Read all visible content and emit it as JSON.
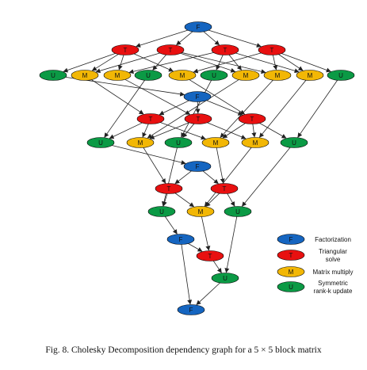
{
  "colors": {
    "F": "#1565c0",
    "T": "#e81010",
    "M": "#f2b705",
    "U": "#0b9a45",
    "edge": "#222222",
    "stroke": "#000000"
  },
  "nodes": [
    {
      "id": "F1",
      "type": "F",
      "label": "F"
    },
    {
      "id": "T12",
      "type": "T",
      "label": "T"
    },
    {
      "id": "T13",
      "type": "T",
      "label": "T"
    },
    {
      "id": "T14",
      "type": "T",
      "label": "T"
    },
    {
      "id": "T15",
      "type": "T",
      "label": "T"
    },
    {
      "id": "U22",
      "type": "U",
      "label": "U"
    },
    {
      "id": "M23",
      "type": "M",
      "label": "M"
    },
    {
      "id": "M24",
      "type": "M",
      "label": "M"
    },
    {
      "id": "U33",
      "type": "U",
      "label": "U"
    },
    {
      "id": "M25",
      "type": "M",
      "label": "M"
    },
    {
      "id": "U44",
      "type": "U",
      "label": "U"
    },
    {
      "id": "M34",
      "type": "M",
      "label": "M"
    },
    {
      "id": "M35",
      "type": "M",
      "label": "M"
    },
    {
      "id": "M45",
      "type": "M",
      "label": "M"
    },
    {
      "id": "U55",
      "type": "U",
      "label": "U"
    },
    {
      "id": "F2",
      "type": "F",
      "label": "F"
    },
    {
      "id": "T23",
      "type": "T",
      "label": "T"
    },
    {
      "id": "T24",
      "type": "T",
      "label": "T"
    },
    {
      "id": "T25",
      "type": "T",
      "label": "T"
    },
    {
      "id": "U33b",
      "type": "U",
      "label": "U"
    },
    {
      "id": "M34b",
      "type": "M",
      "label": "M"
    },
    {
      "id": "U44b",
      "type": "U",
      "label": "U"
    },
    {
      "id": "M35b",
      "type": "M",
      "label": "M"
    },
    {
      "id": "M45b",
      "type": "M",
      "label": "M"
    },
    {
      "id": "U55b",
      "type": "U",
      "label": "U"
    },
    {
      "id": "F3",
      "type": "F",
      "label": "F"
    },
    {
      "id": "T34",
      "type": "T",
      "label": "T"
    },
    {
      "id": "T35",
      "type": "T",
      "label": "T"
    },
    {
      "id": "U44c",
      "type": "U",
      "label": "U"
    },
    {
      "id": "M45c",
      "type": "M",
      "label": "M"
    },
    {
      "id": "U55c",
      "type": "U",
      "label": "U"
    },
    {
      "id": "F4",
      "type": "F",
      "label": "F"
    },
    {
      "id": "T45",
      "type": "T",
      "label": "T"
    },
    {
      "id": "U55d",
      "type": "U",
      "label": "U"
    },
    {
      "id": "F5",
      "type": "F",
      "label": "F"
    }
  ],
  "edges": [
    [
      "F1",
      "T12"
    ],
    [
      "F1",
      "T13"
    ],
    [
      "F1",
      "T14"
    ],
    [
      "F1",
      "T15"
    ],
    [
      "T12",
      "U22"
    ],
    [
      "T12",
      "M23"
    ],
    [
      "T12",
      "M24"
    ],
    [
      "T12",
      "M25"
    ],
    [
      "T13",
      "M23"
    ],
    [
      "T13",
      "U33"
    ],
    [
      "T13",
      "M34"
    ],
    [
      "T13",
      "M35"
    ],
    [
      "T14",
      "M24"
    ],
    [
      "T14",
      "M34"
    ],
    [
      "T14",
      "U44"
    ],
    [
      "T14",
      "M45"
    ],
    [
      "T15",
      "M25"
    ],
    [
      "T15",
      "M35"
    ],
    [
      "T15",
      "M45"
    ],
    [
      "T15",
      "U55"
    ],
    [
      "U22",
      "F2"
    ],
    [
      "M23",
      "T23"
    ],
    [
      "M24",
      "T24"
    ],
    [
      "M25",
      "T25"
    ],
    [
      "U33",
      "U33b"
    ],
    [
      "M34",
      "M34b"
    ],
    [
      "U44",
      "U44b"
    ],
    [
      "M35",
      "M35b"
    ],
    [
      "M45",
      "M45b"
    ],
    [
      "U55",
      "U55b"
    ],
    [
      "F2",
      "T23"
    ],
    [
      "F2",
      "T24"
    ],
    [
      "F2",
      "T25"
    ],
    [
      "T23",
      "U33b"
    ],
    [
      "T23",
      "M34b"
    ],
    [
      "T23",
      "M35b"
    ],
    [
      "T24",
      "M34b"
    ],
    [
      "T24",
      "U44b"
    ],
    [
      "T24",
      "M45b"
    ],
    [
      "T25",
      "M35b"
    ],
    [
      "T25",
      "M45b"
    ],
    [
      "T25",
      "U55b"
    ],
    [
      "U33b",
      "F3"
    ],
    [
      "M34b",
      "T34"
    ],
    [
      "M35b",
      "T35"
    ],
    [
      "U44b",
      "U44c"
    ],
    [
      "M45b",
      "M45c"
    ],
    [
      "U55b",
      "U55c"
    ],
    [
      "F3",
      "T34"
    ],
    [
      "F3",
      "T35"
    ],
    [
      "T34",
      "U44c"
    ],
    [
      "T34",
      "M45c"
    ],
    [
      "T35",
      "M45c"
    ],
    [
      "T35",
      "U55c"
    ],
    [
      "U44c",
      "F4"
    ],
    [
      "M45c",
      "T45"
    ],
    [
      "U55c",
      "U55d"
    ],
    [
      "F4",
      "T45"
    ],
    [
      "T45",
      "U55d"
    ],
    [
      "U55d",
      "F5"
    ],
    [
      "F4",
      "F5"
    ]
  ],
  "legend": [
    {
      "type": "F",
      "label": "F",
      "text": [
        "Factorization"
      ]
    },
    {
      "type": "T",
      "label": "T",
      "text": [
        "Triangular",
        "solve"
      ]
    },
    {
      "type": "M",
      "label": "M",
      "text": [
        "Matrix multiply"
      ]
    },
    {
      "type": "U",
      "label": "U",
      "text": [
        "Symmetric",
        "rank-k update"
      ]
    }
  ],
  "caption": "Fig. 8.   Cholesky Decomposition dependency graph for a 5 × 5 block matrix"
}
